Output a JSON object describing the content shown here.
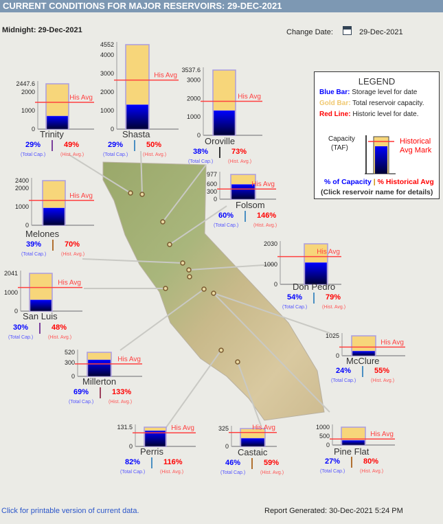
{
  "header": {
    "title": "CURRENT CONDITIONS FOR MAJOR RESERVOIRS: 29-DEC-2021"
  },
  "midnight_label": "Midnight: 29-Dec-2021",
  "change_date": {
    "label": "Change Date:",
    "value": "29-Dec-2021",
    "icon": "calendar-icon"
  },
  "legend": {
    "title": "LEGEND",
    "blue_key": "Blue Bar:",
    "blue_text": "Storage level for date",
    "gold_key": "Gold Bar:",
    "gold_text": "Total reservoir capacity.",
    "red_key": "Red Line:",
    "red_text": "Historic level for date.",
    "capacity": "Capacity",
    "taf": "(TAF)",
    "hist_mark_1": "Historical",
    "hist_mark_2": "Avg Mark",
    "pct_cap": "% of Capacity",
    "sep": "|",
    "pct_hist": "% Historical Avg",
    "click": "(Click reservoir name for details)"
  },
  "his_avg_label": "His Avg",
  "total_cap_label": "(Total Cap.)",
  "hist_avg_label": "(Hist. Avg.)",
  "colors": {
    "storage": "#0000ff",
    "capacity": "#f7d67a",
    "hist_line": "#ff4040",
    "pct_capacity": "#0000ff",
    "pct_hist": "#ff0000",
    "header": "#7d98b3"
  },
  "reservoirs": [
    {
      "name": "Trinity",
      "capacity": 2447.6,
      "ticks": [
        "0",
        "1000",
        "2000",
        "2447.6"
      ],
      "pct_capacity": 29,
      "pct_hist": 49,
      "divider": "#7b3f9c"
    },
    {
      "name": "Shasta",
      "capacity": 4552,
      "ticks": [
        "0",
        "1000",
        "2000",
        "3000",
        "4000",
        "4552"
      ],
      "pct_capacity": 29,
      "pct_hist": 50,
      "divider": "#4a8fc2"
    },
    {
      "name": "Oroville",
      "capacity": 3537.6,
      "ticks": [
        "0",
        "1000",
        "2000",
        "3000",
        "3537.6"
      ],
      "pct_capacity": 38,
      "pct_hist": 73,
      "divider": "#333333"
    },
    {
      "name": "Folsom",
      "capacity": 977,
      "ticks": [
        "0",
        "300",
        "600",
        "977"
      ],
      "pct_capacity": 60,
      "pct_hist": 146,
      "divider": "#4a8fc2"
    },
    {
      "name": "Melones",
      "capacity": 2400,
      "ticks": [
        "0",
        "1000",
        "2000",
        "2400"
      ],
      "pct_capacity": 39,
      "pct_hist": 70,
      "divider": "#b07030"
    },
    {
      "name": "Don Pedro",
      "capacity": 2030,
      "ticks": [
        "0",
        "1000",
        "2030"
      ],
      "pct_capacity": 54,
      "pct_hist": 79,
      "divider": "#4a8fc2"
    },
    {
      "name": "San Luis",
      "capacity": 2041,
      "ticks": [
        "0",
        "1000",
        "2041"
      ],
      "pct_capacity": 30,
      "pct_hist": 48,
      "divider": "#7b3f9c"
    },
    {
      "name": "McClure",
      "capacity": 1025,
      "ticks": [
        "0",
        "1025"
      ],
      "pct_capacity": 24,
      "pct_hist": 55,
      "divider": "#4a8fc2"
    },
    {
      "name": "Millerton",
      "capacity": 520,
      "ticks": [
        "0",
        "300",
        "520"
      ],
      "pct_capacity": 69,
      "pct_hist": 133,
      "divider": "#9c3f5c"
    },
    {
      "name": "Perris",
      "capacity": 131.5,
      "ticks": [
        "0",
        "131.5"
      ],
      "pct_capacity": 82,
      "pct_hist": 116,
      "divider": "#4a8fc2"
    },
    {
      "name": "Castaic",
      "capacity": 325,
      "ticks": [
        "0",
        "325"
      ],
      "pct_capacity": 46,
      "pct_hist": 59,
      "divider": "#b07030"
    },
    {
      "name": "Pine Flat",
      "capacity": 1000,
      "ticks": [
        "0",
        "500",
        "1000"
      ],
      "pct_capacity": 27,
      "pct_hist": 80,
      "divider": "#b07030"
    }
  ],
  "footer": {
    "print_link": "Click for printable version of current data.",
    "report": "Report Generated: 30-Dec-2021 5:24 PM"
  }
}
